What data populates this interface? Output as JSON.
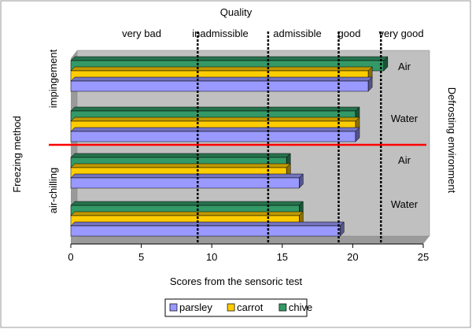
{
  "chart_data": {
    "type": "bar",
    "orientation": "horizontal",
    "title": "Quality",
    "xlabel": "Scores from the sensoric test",
    "ylabel_left": "Freezing method",
    "ylabel_right": "Defrosting environment",
    "xlim": [
      0,
      25
    ],
    "xticks": [
      0,
      5,
      10,
      15,
      20,
      25
    ],
    "grid": false,
    "legend_position": "bottom",
    "quality_levels": [
      {
        "label": "very bad",
        "threshold": 9
      },
      {
        "label": "inadmissible",
        "threshold": 14
      },
      {
        "label": "admissible",
        "threshold": 19
      },
      {
        "label": "good",
        "threshold": 22
      },
      {
        "label": "very good",
        "threshold": null
      }
    ],
    "freezing_methods": [
      "impingement",
      "air-chilling"
    ],
    "groups": [
      {
        "method": "impingement",
        "environment": "Air",
        "values": {
          "chive": 22.2,
          "carrot": 21.1,
          "parsley": 21.1
        }
      },
      {
        "method": "impingement",
        "environment": "Water",
        "values": {
          "chive": 20.2,
          "carrot": 20.2,
          "parsley": 20.2
        }
      },
      {
        "method": "air-chilling",
        "environment": "Air",
        "values": {
          "chive": 15.3,
          "carrot": 15.3,
          "parsley": 16.2
        }
      },
      {
        "method": "air-chilling",
        "environment": "Water",
        "values": {
          "chive": 16.2,
          "carrot": 16.2,
          "parsley": 19.1
        }
      }
    ],
    "series": [
      {
        "name": "parsley",
        "color": "#9999ff"
      },
      {
        "name": "carrot",
        "color": "#ffcc00"
      },
      {
        "name": "chive",
        "color": "#339966"
      }
    ],
    "divider_color": "#ff0000"
  }
}
